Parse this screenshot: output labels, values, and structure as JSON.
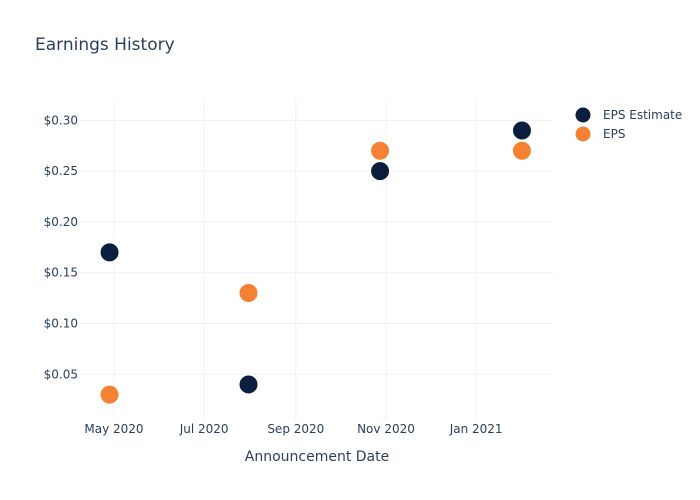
{
  "chart_data": {
    "type": "scatter",
    "title": "Earnings History",
    "xlabel": "Announcement Date",
    "ylabel": "",
    "x_ticks": [
      {
        "label": "May 2020",
        "date": "2020-05-01"
      },
      {
        "label": "Jul 2020",
        "date": "2020-07-01"
      },
      {
        "label": "Sep 2020",
        "date": "2020-09-01"
      },
      {
        "label": "Nov 2020",
        "date": "2020-11-01"
      },
      {
        "label": "Jan 2021",
        "date": "2021-01-01"
      }
    ],
    "x_range": [
      "2020-04-08",
      "2021-02-22"
    ],
    "y_ticks": [
      0.05,
      0.1,
      0.15,
      0.2,
      0.25,
      0.3
    ],
    "y_tick_prefix": "$",
    "ylim": [
      0.005,
      0.32
    ],
    "legend_position": "top-right",
    "series": [
      {
        "name": "EPS Estimate",
        "color": "#0b1e3d",
        "points": [
          {
            "x": "2020-04-28",
            "y": 0.17
          },
          {
            "x": "2020-07-31",
            "y": 0.04
          },
          {
            "x": "2020-10-28",
            "y": 0.25
          },
          {
            "x": "2021-02-01",
            "y": 0.29
          }
        ]
      },
      {
        "name": "EPS",
        "color": "#f58233",
        "points": [
          {
            "x": "2020-04-28",
            "y": 0.03
          },
          {
            "x": "2020-07-31",
            "y": 0.13
          },
          {
            "x": "2020-10-28",
            "y": 0.27
          },
          {
            "x": "2021-02-01",
            "y": 0.27
          }
        ]
      }
    ]
  }
}
